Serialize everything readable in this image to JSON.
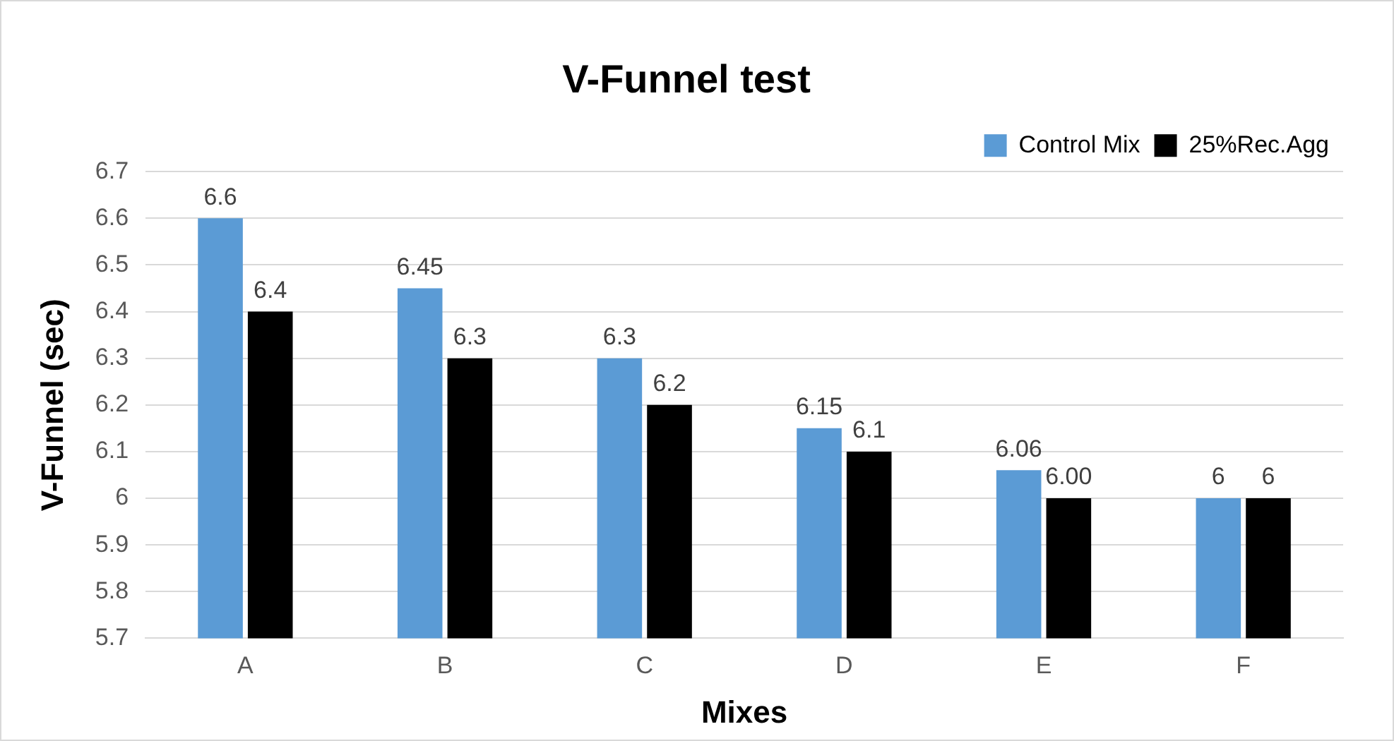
{
  "chart_data": {
    "type": "bar",
    "title": "V-Funnel test",
    "xlabel": "Mixes",
    "ylabel": "V-Funnel (sec)",
    "categories": [
      "A",
      "B",
      "C",
      "D",
      "E",
      "F"
    ],
    "series": [
      {
        "name": "Control Mix",
        "color": "#5b9bd5",
        "values": [
          6.6,
          6.45,
          6.3,
          6.15,
          6.06,
          6
        ],
        "value_labels": [
          "6.6",
          "6.45",
          "6.3",
          "6.15",
          "6.06",
          "6"
        ]
      },
      {
        "name": "25%Rec.Agg",
        "color": "#000000",
        "values": [
          6.4,
          6.3,
          6.2,
          6.1,
          6.0,
          6
        ],
        "value_labels": [
          "6.4",
          "6.3",
          "6.2",
          "6.1",
          "6.00",
          "6"
        ]
      }
    ],
    "ylim": [
      5.7,
      6.7
    ],
    "yticks": [
      5.7,
      5.8,
      5.9,
      6,
      6.1,
      6.2,
      6.3,
      6.4,
      6.5,
      6.6,
      6.7
    ],
    "grid": "y",
    "legend": "top right"
  }
}
